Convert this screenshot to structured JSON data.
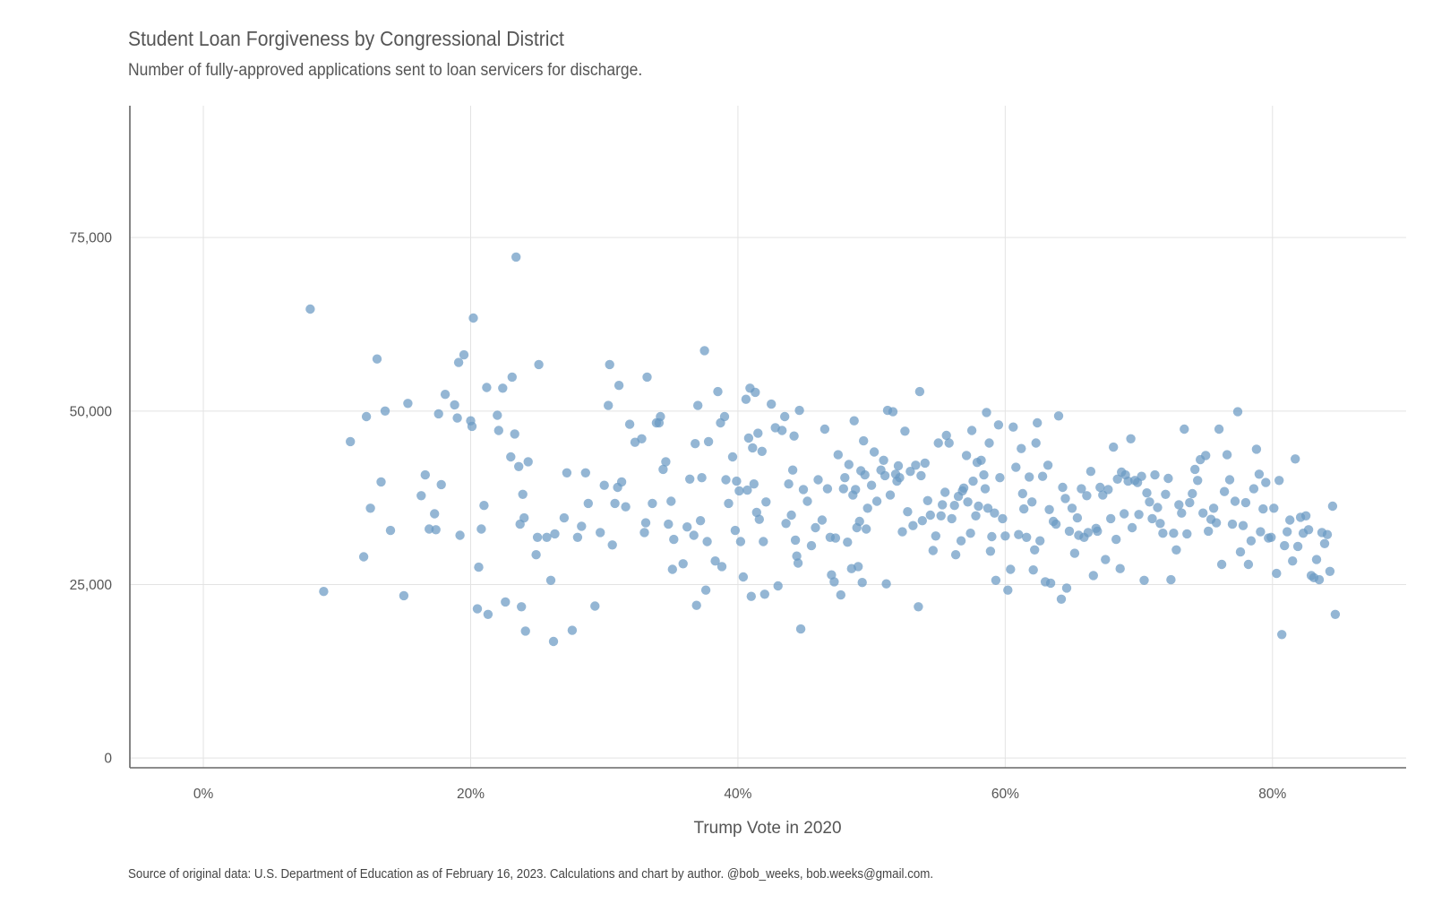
{
  "title": "Student Loan Forgiveness by Congressional District",
  "subtitle": "Number of fully-approved applications sent to loan servicers for discharge.",
  "caption": "Source of original data: U.S. Department of Education as of February 16, 2023. Calculations and chart by author. @bob_weeks, bob.weeks@gmail.com.",
  "chart_data": {
    "type": "scatter",
    "xlabel": "Trump Vote in 2020",
    "ylabel": "",
    "xlim": [
      -0.055,
      0.9
    ],
    "ylim": [
      -1400,
      94000
    ],
    "x_ticks": [
      0,
      0.2,
      0.4,
      0.6,
      0.8
    ],
    "x_tick_labels": [
      "0%",
      "20%",
      "40%",
      "60%",
      "80%"
    ],
    "y_ticks": [
      0,
      25000,
      50000,
      75000
    ],
    "y_tick_labels": [
      "0",
      "25,000",
      "50,000",
      "75,000"
    ],
    "grid": true,
    "point_color": "#6b9ac4",
    "points": [
      [
        0.08,
        64700
      ],
      [
        0.09,
        24000
      ],
      [
        0.11,
        45600
      ],
      [
        0.12,
        29000
      ],
      [
        0.122,
        49200
      ],
      [
        0.125,
        36000
      ],
      [
        0.13,
        57500
      ],
      [
        0.133,
        39800
      ],
      [
        0.136,
        50000
      ],
      [
        0.14,
        32800
      ],
      [
        0.15,
        23400
      ],
      [
        0.153,
        51100
      ],
      [
        0.163,
        37800
      ],
      [
        0.166,
        40800
      ],
      [
        0.169,
        33000
      ],
      [
        0.173,
        35200
      ],
      [
        0.174,
        32900
      ],
      [
        0.176,
        49600
      ],
      [
        0.178,
        39400
      ],
      [
        0.181,
        52400
      ],
      [
        0.188,
        50900
      ],
      [
        0.19,
        49000
      ],
      [
        0.191,
        57000
      ],
      [
        0.192,
        32100
      ],
      [
        0.195,
        58100
      ],
      [
        0.2,
        48600
      ],
      [
        0.201,
        47800
      ],
      [
        0.202,
        63400
      ],
      [
        0.205,
        21500
      ],
      [
        0.206,
        27500
      ],
      [
        0.208,
        33000
      ],
      [
        0.21,
        36400
      ],
      [
        0.212,
        53400
      ],
      [
        0.213,
        20700
      ],
      [
        0.22,
        49400
      ],
      [
        0.221,
        47200
      ],
      [
        0.224,
        53300
      ],
      [
        0.226,
        22500
      ],
      [
        0.23,
        43400
      ],
      [
        0.231,
        54900
      ],
      [
        0.233,
        46700
      ],
      [
        0.234,
        72200
      ],
      [
        0.236,
        42000
      ],
      [
        0.237,
        33700
      ],
      [
        0.238,
        21800
      ],
      [
        0.239,
        38000
      ],
      [
        0.24,
        34600
      ],
      [
        0.241,
        18300
      ],
      [
        0.243,
        42700
      ],
      [
        0.249,
        29300
      ],
      [
        0.25,
        31800
      ],
      [
        0.251,
        56700
      ],
      [
        0.257,
        31800
      ],
      [
        0.26,
        25600
      ],
      [
        0.262,
        16800
      ],
      [
        0.263,
        32300
      ],
      [
        0.27,
        34600
      ],
      [
        0.272,
        41100
      ],
      [
        0.276,
        18400
      ],
      [
        0.28,
        31800
      ],
      [
        0.283,
        33400
      ],
      [
        0.286,
        41100
      ],
      [
        0.288,
        36700
      ],
      [
        0.293,
        21900
      ],
      [
        0.297,
        32500
      ],
      [
        0.3,
        39300
      ],
      [
        0.303,
        50800
      ],
      [
        0.304,
        56700
      ],
      [
        0.306,
        30700
      ],
      [
        0.308,
        36700
      ],
      [
        0.31,
        39000
      ],
      [
        0.311,
        53700
      ],
      [
        0.313,
        39800
      ],
      [
        0.316,
        36200
      ],
      [
        0.319,
        48100
      ],
      [
        0.323,
        45500
      ],
      [
        0.328,
        46000
      ],
      [
        0.33,
        32500
      ],
      [
        0.331,
        33900
      ],
      [
        0.332,
        54900
      ],
      [
        0.336,
        36700
      ],
      [
        0.339,
        48300
      ],
      [
        0.341,
        48300
      ],
      [
        0.342,
        49200
      ],
      [
        0.344,
        41600
      ],
      [
        0.346,
        42700
      ],
      [
        0.348,
        33700
      ],
      [
        0.35,
        37000
      ],
      [
        0.351,
        27200
      ],
      [
        0.352,
        31500
      ],
      [
        0.359,
        28000
      ],
      [
        0.362,
        33300
      ],
      [
        0.364,
        40200
      ],
      [
        0.367,
        32100
      ],
      [
        0.368,
        45300
      ],
      [
        0.369,
        22000
      ],
      [
        0.37,
        50800
      ],
      [
        0.372,
        34200
      ],
      [
        0.373,
        40400
      ],
      [
        0.375,
        58700
      ],
      [
        0.376,
        24200
      ],
      [
        0.377,
        31200
      ],
      [
        0.378,
        45600
      ],
      [
        0.383,
        28400
      ],
      [
        0.385,
        52800
      ],
      [
        0.387,
        48300
      ],
      [
        0.388,
        27600
      ],
      [
        0.39,
        49200
      ],
      [
        0.391,
        40100
      ],
      [
        0.393,
        36700
      ],
      [
        0.396,
        43400
      ],
      [
        0.398,
        32800
      ],
      [
        0.399,
        39900
      ],
      [
        0.401,
        38500
      ],
      [
        0.402,
        31200
      ],
      [
        0.404,
        26100
      ],
      [
        0.406,
        51700
      ],
      [
        0.407,
        38600
      ],
      [
        0.408,
        46100
      ],
      [
        0.409,
        53300
      ],
      [
        0.41,
        23300
      ],
      [
        0.411,
        44700
      ],
      [
        0.412,
        39500
      ],
      [
        0.413,
        52700
      ],
      [
        0.414,
        35400
      ],
      [
        0.415,
        46800
      ],
      [
        0.416,
        34400
      ],
      [
        0.418,
        44200
      ],
      [
        0.419,
        31200
      ],
      [
        0.42,
        23600
      ],
      [
        0.421,
        36900
      ],
      [
        0.425,
        51000
      ],
      [
        0.428,
        47600
      ],
      [
        0.43,
        24800
      ],
      [
        0.433,
        47200
      ],
      [
        0.435,
        49200
      ],
      [
        0.436,
        33800
      ],
      [
        0.438,
        39500
      ],
      [
        0.44,
        35000
      ],
      [
        0.441,
        41500
      ],
      [
        0.442,
        46400
      ],
      [
        0.443,
        31400
      ],
      [
        0.444,
        29100
      ],
      [
        0.445,
        28100
      ],
      [
        0.446,
        50100
      ],
      [
        0.447,
        18600
      ],
      [
        0.449,
        38700
      ],
      [
        0.452,
        37000
      ],
      [
        0.455,
        30600
      ],
      [
        0.458,
        33200
      ],
      [
        0.46,
        40100
      ],
      [
        0.463,
        34300
      ],
      [
        0.465,
        47400
      ],
      [
        0.467,
        38800
      ],
      [
        0.469,
        31800
      ],
      [
        0.47,
        26400
      ],
      [
        0.472,
        25400
      ],
      [
        0.473,
        31700
      ],
      [
        0.475,
        43700
      ],
      [
        0.477,
        23500
      ],
      [
        0.479,
        38800
      ],
      [
        0.48,
        40400
      ],
      [
        0.482,
        31100
      ],
      [
        0.483,
        42300
      ],
      [
        0.485,
        27300
      ],
      [
        0.486,
        37900
      ],
      [
        0.487,
        48600
      ],
      [
        0.488,
        38700
      ],
      [
        0.489,
        33200
      ],
      [
        0.49,
        27600
      ],
      [
        0.491,
        34100
      ],
      [
        0.492,
        41400
      ],
      [
        0.493,
        25300
      ],
      [
        0.494,
        45700
      ],
      [
        0.495,
        40800
      ],
      [
        0.496,
        33000
      ],
      [
        0.497,
        36000
      ],
      [
        0.5,
        39300
      ],
      [
        0.502,
        44100
      ],
      [
        0.504,
        37000
      ],
      [
        0.507,
        41500
      ],
      [
        0.509,
        42900
      ],
      [
        0.51,
        40700
      ],
      [
        0.511,
        25100
      ],
      [
        0.512,
        50100
      ],
      [
        0.514,
        37900
      ],
      [
        0.516,
        49900
      ],
      [
        0.518,
        40900
      ],
      [
        0.519,
        39900
      ],
      [
        0.52,
        42100
      ],
      [
        0.521,
        40400
      ],
      [
        0.523,
        32600
      ],
      [
        0.525,
        47100
      ],
      [
        0.527,
        35500
      ],
      [
        0.529,
        41300
      ],
      [
        0.531,
        33500
      ],
      [
        0.533,
        42200
      ],
      [
        0.535,
        21800
      ],
      [
        0.536,
        52800
      ],
      [
        0.537,
        40700
      ],
      [
        0.538,
        34200
      ],
      [
        0.54,
        42500
      ],
      [
        0.542,
        37100
      ],
      [
        0.544,
        35000
      ],
      [
        0.546,
        29900
      ],
      [
        0.548,
        32000
      ],
      [
        0.55,
        45400
      ],
      [
        0.552,
        34900
      ],
      [
        0.553,
        36500
      ],
      [
        0.555,
        38300
      ],
      [
        0.556,
        46500
      ],
      [
        0.558,
        45400
      ],
      [
        0.56,
        34500
      ],
      [
        0.562,
        36400
      ],
      [
        0.563,
        29300
      ],
      [
        0.565,
        37700
      ],
      [
        0.567,
        31300
      ],
      [
        0.568,
        38500
      ],
      [
        0.569,
        38900
      ],
      [
        0.571,
        43600
      ],
      [
        0.572,
        36900
      ],
      [
        0.574,
        32400
      ],
      [
        0.575,
        47200
      ],
      [
        0.576,
        39900
      ],
      [
        0.578,
        34900
      ],
      [
        0.579,
        42600
      ],
      [
        0.58,
        36300
      ],
      [
        0.582,
        42900
      ],
      [
        0.584,
        40800
      ],
      [
        0.585,
        38800
      ],
      [
        0.586,
        49800
      ],
      [
        0.587,
        36000
      ],
      [
        0.588,
        45400
      ],
      [
        0.589,
        29800
      ],
      [
        0.59,
        31900
      ],
      [
        0.592,
        35300
      ],
      [
        0.593,
        25600
      ],
      [
        0.595,
        48000
      ],
      [
        0.596,
        40400
      ],
      [
        0.598,
        34500
      ],
      [
        0.6,
        32000
      ],
      [
        0.602,
        24200
      ],
      [
        0.604,
        27200
      ],
      [
        0.606,
        47700
      ],
      [
        0.608,
        41900
      ],
      [
        0.61,
        32200
      ],
      [
        0.612,
        44600
      ],
      [
        0.613,
        38100
      ],
      [
        0.614,
        35900
      ],
      [
        0.616,
        31800
      ],
      [
        0.618,
        40500
      ],
      [
        0.62,
        36900
      ],
      [
        0.621,
        27100
      ],
      [
        0.622,
        30000
      ],
      [
        0.623,
        45400
      ],
      [
        0.624,
        48300
      ],
      [
        0.626,
        31300
      ],
      [
        0.628,
        40600
      ],
      [
        0.63,
        25400
      ],
      [
        0.632,
        42200
      ],
      [
        0.633,
        35800
      ],
      [
        0.634,
        25200
      ],
      [
        0.636,
        34100
      ],
      [
        0.638,
        33700
      ],
      [
        0.64,
        49300
      ],
      [
        0.642,
        22900
      ],
      [
        0.643,
        39000
      ],
      [
        0.645,
        37400
      ],
      [
        0.646,
        24500
      ],
      [
        0.648,
        32700
      ],
      [
        0.65,
        36000
      ],
      [
        0.652,
        29500
      ],
      [
        0.654,
        34600
      ],
      [
        0.655,
        32100
      ],
      [
        0.657,
        38800
      ],
      [
        0.659,
        31800
      ],
      [
        0.661,
        37800
      ],
      [
        0.662,
        32500
      ],
      [
        0.664,
        41300
      ],
      [
        0.666,
        26300
      ],
      [
        0.668,
        33100
      ],
      [
        0.669,
        32700
      ],
      [
        0.671,
        39000
      ],
      [
        0.673,
        37900
      ],
      [
        0.675,
        28600
      ],
      [
        0.677,
        38700
      ],
      [
        0.679,
        34500
      ],
      [
        0.681,
        44800
      ],
      [
        0.683,
        31500
      ],
      [
        0.684,
        40200
      ],
      [
        0.686,
        27300
      ],
      [
        0.687,
        41200
      ],
      [
        0.689,
        35200
      ],
      [
        0.69,
        40800
      ],
      [
        0.692,
        39900
      ],
      [
        0.694,
        46000
      ],
      [
        0.695,
        33200
      ],
      [
        0.697,
        40000
      ],
      [
        0.699,
        39700
      ],
      [
        0.7,
        35100
      ],
      [
        0.702,
        40600
      ],
      [
        0.704,
        25600
      ],
      [
        0.706,
        38200
      ],
      [
        0.708,
        36900
      ],
      [
        0.71,
        34500
      ],
      [
        0.712,
        40800
      ],
      [
        0.714,
        36100
      ],
      [
        0.716,
        33800
      ],
      [
        0.718,
        32400
      ],
      [
        0.72,
        38000
      ],
      [
        0.722,
        40300
      ],
      [
        0.724,
        25700
      ],
      [
        0.726,
        32400
      ],
      [
        0.728,
        30000
      ],
      [
        0.73,
        36500
      ],
      [
        0.732,
        35300
      ],
      [
        0.734,
        47400
      ],
      [
        0.736,
        32300
      ],
      [
        0.738,
        36800
      ],
      [
        0.74,
        38100
      ],
      [
        0.742,
        41600
      ],
      [
        0.744,
        40000
      ],
      [
        0.746,
        43000
      ],
      [
        0.748,
        35300
      ],
      [
        0.75,
        43600
      ],
      [
        0.752,
        32700
      ],
      [
        0.754,
        34400
      ],
      [
        0.756,
        36000
      ],
      [
        0.758,
        33900
      ],
      [
        0.76,
        47400
      ],
      [
        0.762,
        27900
      ],
      [
        0.764,
        38400
      ],
      [
        0.766,
        43700
      ],
      [
        0.768,
        40100
      ],
      [
        0.77,
        33700
      ],
      [
        0.772,
        37000
      ],
      [
        0.774,
        49900
      ],
      [
        0.776,
        29700
      ],
      [
        0.778,
        33500
      ],
      [
        0.78,
        36800
      ],
      [
        0.782,
        27900
      ],
      [
        0.784,
        31300
      ],
      [
        0.786,
        38800
      ],
      [
        0.788,
        44500
      ],
      [
        0.79,
        40900
      ],
      [
        0.791,
        32600
      ],
      [
        0.793,
        35900
      ],
      [
        0.795,
        39700
      ],
      [
        0.797,
        31700
      ],
      [
        0.799,
        31800
      ],
      [
        0.801,
        36000
      ],
      [
        0.803,
        26600
      ],
      [
        0.805,
        40000
      ],
      [
        0.807,
        17800
      ],
      [
        0.809,
        30600
      ],
      [
        0.811,
        32600
      ],
      [
        0.813,
        34300
      ],
      [
        0.815,
        28400
      ],
      [
        0.817,
        43100
      ],
      [
        0.819,
        30500
      ],
      [
        0.821,
        34700
      ],
      [
        0.823,
        32400
      ],
      [
        0.825,
        34900
      ],
      [
        0.827,
        32900
      ],
      [
        0.829,
        26300
      ],
      [
        0.831,
        26000
      ],
      [
        0.833,
        28600
      ],
      [
        0.835,
        25700
      ],
      [
        0.837,
        32500
      ],
      [
        0.839,
        30900
      ],
      [
        0.841,
        32200
      ],
      [
        0.843,
        26900
      ],
      [
        0.845,
        36300
      ],
      [
        0.847,
        20700
      ]
    ]
  }
}
